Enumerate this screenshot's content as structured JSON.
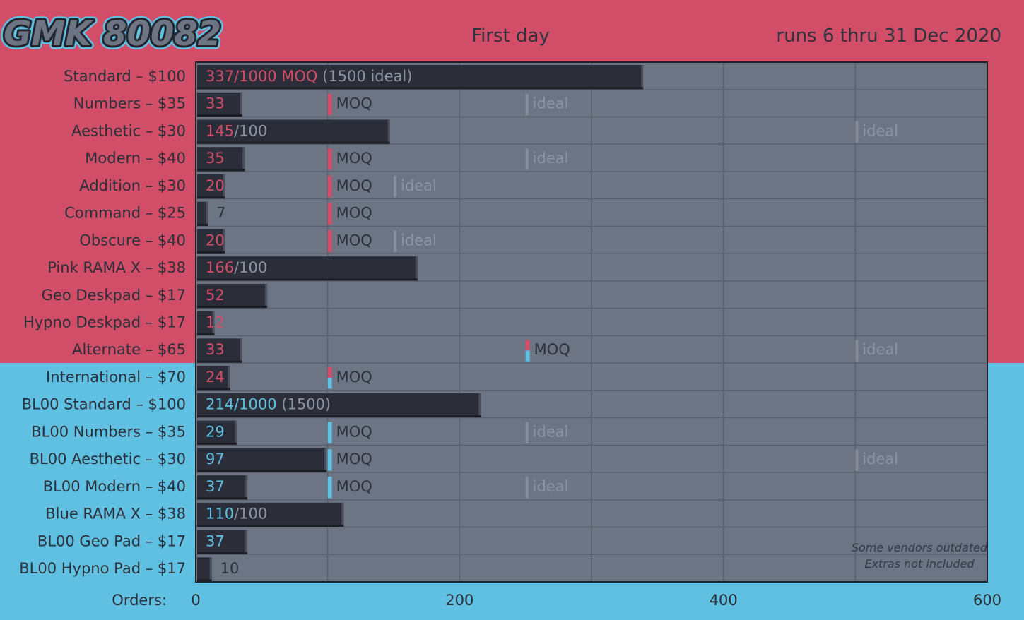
{
  "header": {
    "logo_text": "GMK 80082",
    "subtitle": "First day",
    "date_range": "runs 6 thru 31 Dec 2020"
  },
  "colors": {
    "pink": "#d14d68",
    "blue": "#5fc0e2",
    "plot_bg": "#6d7585",
    "bar": "#2b2e38",
    "text_dark": "#2b303a",
    "muted": "#8c93a1"
  },
  "chart_data": {
    "type": "bar",
    "orientation": "horizontal",
    "x_label": "Orders:",
    "xlim": [
      0,
      600
    ],
    "x_ticks": [
      0,
      200,
      400,
      600
    ],
    "minor_gridlines": [
      100,
      300,
      500
    ],
    "marker_labels": {
      "moq": "MOQ",
      "ideal": "ideal"
    },
    "footnote": [
      "Some vendors outdated",
      "Extras not included"
    ],
    "rows": [
      {
        "label": "Standard – $100",
        "value": 337,
        "theme": "pink",
        "value_text": "337",
        "suffix_text": "/1000 MOQ",
        "muted_text": " (1500 ideal)"
      },
      {
        "label": "Numbers – $35",
        "value": 33,
        "theme": "pink",
        "value_text": "33",
        "moq": 100,
        "ideal": 250
      },
      {
        "label": "Aesthetic – $30",
        "value": 145,
        "theme": "pink",
        "value_text": "145",
        "muted_text": "/100",
        "ideal": 500
      },
      {
        "label": "Modern – $40",
        "value": 35,
        "theme": "pink",
        "value_text": "35",
        "moq": 100,
        "ideal": 250
      },
      {
        "label": "Addition – $30",
        "value": 20,
        "theme": "pink",
        "value_text": "20",
        "moq": 100,
        "ideal": 150
      },
      {
        "label": "Command – $25",
        "value": 7,
        "theme": "pink",
        "value_text": "7",
        "moq": 100
      },
      {
        "label": "Obscure – $40",
        "value": 20,
        "theme": "pink",
        "value_text": "20",
        "moq": 100,
        "ideal": 150
      },
      {
        "label": "Pink RAMA X – $38",
        "value": 166,
        "theme": "pink",
        "value_text": "166",
        "muted_text": "/100"
      },
      {
        "label": "Geo Deskpad – $17",
        "value": 52,
        "theme": "pink",
        "value_text": "52"
      },
      {
        "label": "Hypno Deskpad – $17",
        "value": 12,
        "theme": "pink",
        "value_text": "12"
      },
      {
        "label": "Alternate – $65",
        "value": 33,
        "theme": "pink",
        "value_text": "33",
        "moq": 250,
        "moq_style": "split",
        "ideal": 500
      },
      {
        "label": "International – $70",
        "value": 24,
        "theme": "pink",
        "value_text": "24",
        "moq": 100,
        "moq_style": "split"
      },
      {
        "label": "BL00 Standard – $100",
        "value": 214,
        "theme": "blue",
        "value_text": "214",
        "suffix_text": "/1000",
        "muted_text": " (1500)"
      },
      {
        "label": "BL00 Numbers – $35",
        "value": 29,
        "theme": "blue",
        "value_text": "29",
        "moq": 100,
        "ideal": 250
      },
      {
        "label": "BL00 Aesthetic – $30",
        "value": 97,
        "theme": "blue",
        "value_text": "97",
        "moq": 100,
        "ideal": 500
      },
      {
        "label": "BL00 Modern – $40",
        "value": 37,
        "theme": "blue",
        "value_text": "37",
        "moq": 100,
        "ideal": 250
      },
      {
        "label": "Blue RAMA X – $38",
        "value": 110,
        "theme": "blue",
        "value_text": "110",
        "muted_text": "/100"
      },
      {
        "label": "BL00 Geo Pad – $17",
        "value": 37,
        "theme": "blue",
        "value_text": "37"
      },
      {
        "label": "BL00 Hypno Pad – $17",
        "value": 10,
        "theme": "blue",
        "value_text": "10"
      }
    ]
  }
}
